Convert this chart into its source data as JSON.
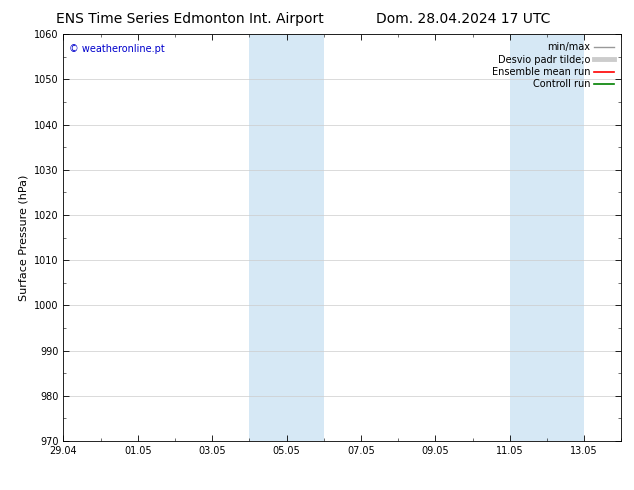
{
  "title_left": "ENS Time Series Edmonton Int. Airport",
  "title_right": "Dom. 28.04.2024 17 UTC",
  "ylabel": "Surface Pressure (hPa)",
  "ylim": [
    970,
    1060
  ],
  "yticks": [
    970,
    980,
    990,
    1000,
    1010,
    1020,
    1030,
    1040,
    1050,
    1060
  ],
  "xlim": [
    0,
    15
  ],
  "xtick_labels": [
    "29.04",
    "01.05",
    "03.05",
    "05.05",
    "07.05",
    "09.05",
    "11.05",
    "13.05"
  ],
  "xtick_positions": [
    0,
    2,
    4,
    6,
    8,
    10,
    12,
    14
  ],
  "shaded_bands": [
    {
      "x_start": 5.0,
      "x_end": 7.0
    },
    {
      "x_start": 12.0,
      "x_end": 14.0
    }
  ],
  "shaded_color": "#d6e8f5",
  "watermark_text": "© weatheronline.pt",
  "watermark_color": "#0000cc",
  "legend_entries": [
    {
      "label": "min/max",
      "color": "#999999",
      "lw": 1.0,
      "linestyle": "-"
    },
    {
      "label": "Desvio padr tilde;o",
      "color": "#cccccc",
      "lw": 3.5,
      "linestyle": "-"
    },
    {
      "label": "Ensemble mean run",
      "color": "#ff0000",
      "lw": 1.2,
      "linestyle": "-"
    },
    {
      "label": "Controll run",
      "color": "#008000",
      "lw": 1.2,
      "linestyle": "-"
    }
  ],
  "bg_color": "#ffffff",
  "grid_color": "#cccccc",
  "tick_color": "#000000",
  "title_fontsize": 10,
  "axis_label_fontsize": 8,
  "tick_fontsize": 7,
  "watermark_fontsize": 7,
  "legend_fontsize": 7
}
